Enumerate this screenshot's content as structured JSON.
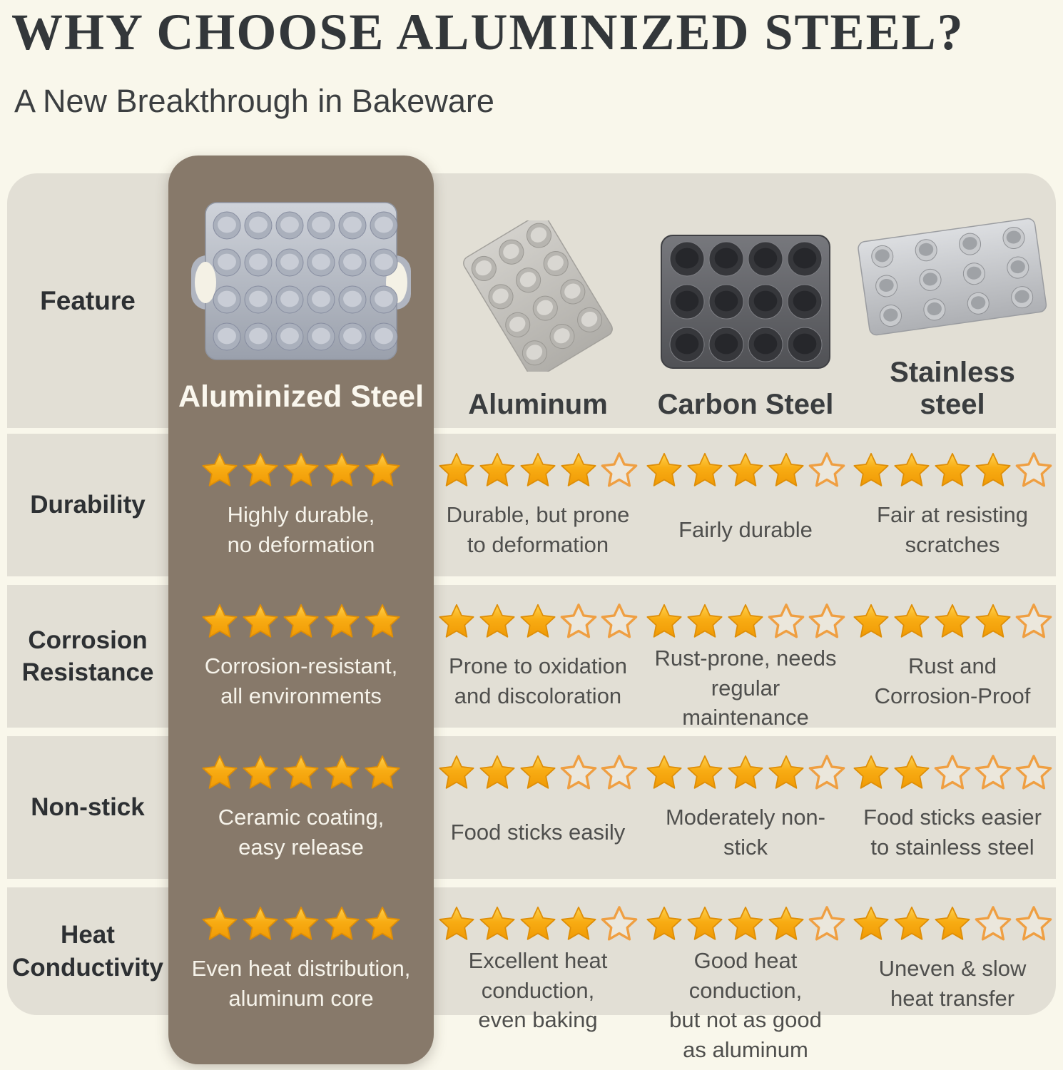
{
  "header": {
    "title": "WHY CHOOSE ALUMINIZED STEEL?",
    "subtitle": "A New Breakthrough in Bakeware"
  },
  "table": {
    "feature_header": "Feature",
    "columns": [
      "Aluminized Steel",
      "Aluminum",
      "Carbon Steel",
      "Stainless\nsteel"
    ],
    "rows": [
      {
        "feature": "Durability",
        "cells": [
          {
            "stars": 5,
            "text": "Highly durable,\nno deformation"
          },
          {
            "stars": 4,
            "text": "Durable, but prone\nto deformation"
          },
          {
            "stars": 4,
            "text": "Fairly durable"
          },
          {
            "stars": 4,
            "text": "Fair at resisting\nscratches"
          }
        ]
      },
      {
        "feature": "Corrosion\nResistance",
        "cells": [
          {
            "stars": 5,
            "text": "Corrosion-resistant,\nall environments"
          },
          {
            "stars": 3,
            "text": "Prone to oxidation\nand discoloration"
          },
          {
            "stars": 3,
            "text": "Rust-prone, needs\nregular maintenance"
          },
          {
            "stars": 4,
            "text": "Rust and\nCorrosion-Proof"
          }
        ]
      },
      {
        "feature": "Non-stick",
        "cells": [
          {
            "stars": 5,
            "text": "Ceramic coating,\neasy release"
          },
          {
            "stars": 3,
            "text": "Food sticks easily"
          },
          {
            "stars": 4,
            "text": "Moderately non-stick"
          },
          {
            "stars": 2,
            "text": "Food sticks easier\nto stainless steel"
          }
        ]
      },
      {
        "feature": "Heat\nConductivity",
        "cells": [
          {
            "stars": 5,
            "text": "Even heat distribution,\naluminum core"
          },
          {
            "stars": 4,
            "text": "Excellent heat\nconduction,\neven baking"
          },
          {
            "stars": 4,
            "text": "Good heat conduction,\nbut not as good\nas aluminum"
          },
          {
            "stars": 3,
            "text": "Uneven & slow\nheat transfer"
          }
        ]
      }
    ]
  },
  "colors": {
    "page_background": "#f9f7eb",
    "row_background": "#e2dfd5",
    "highlight_column": "#87796a",
    "star_filled": "#f5a40e",
    "star_outline": "#ef9f42",
    "title_text": "#33373a",
    "light_text": "#faf7ee",
    "dark_text": "#2d3033"
  },
  "chart_data": {
    "type": "table",
    "title": "WHY CHOOSE ALUMINIZED STEEL?",
    "subtitle": "A New Breakthrough in Bakeware",
    "columns": [
      "Aluminized Steel",
      "Aluminum",
      "Carbon Steel",
      "Stainless steel"
    ],
    "row_features": [
      "Durability",
      "Corrosion Resistance",
      "Non-stick",
      "Heat Conductivity"
    ],
    "max_stars": 5,
    "star_ratings": [
      [
        5,
        4,
        4,
        4
      ],
      [
        5,
        3,
        3,
        4
      ],
      [
        5,
        3,
        4,
        2
      ],
      [
        5,
        4,
        4,
        3
      ]
    ],
    "cell_notes": [
      [
        "Highly durable, no deformation",
        "Durable, but prone to deformation",
        "Fairly durable",
        "Fair at resisting scratches"
      ],
      [
        "Corrosion-resistant, all environments",
        "Prone to oxidation and discoloration",
        "Rust-prone, needs regular maintenance",
        "Rust and Corrosion-Proof"
      ],
      [
        "Ceramic coating, easy release",
        "Food sticks easily",
        "Moderately non-stick",
        "Food sticks easier to stainless steel"
      ],
      [
        "Even heat distribution, aluminum core",
        "Excellent heat conduction, even baking",
        "Good heat conduction, but not as good as aluminum",
        "Uneven & slow heat transfer"
      ]
    ],
    "highlighted_column": "Aluminized Steel"
  }
}
